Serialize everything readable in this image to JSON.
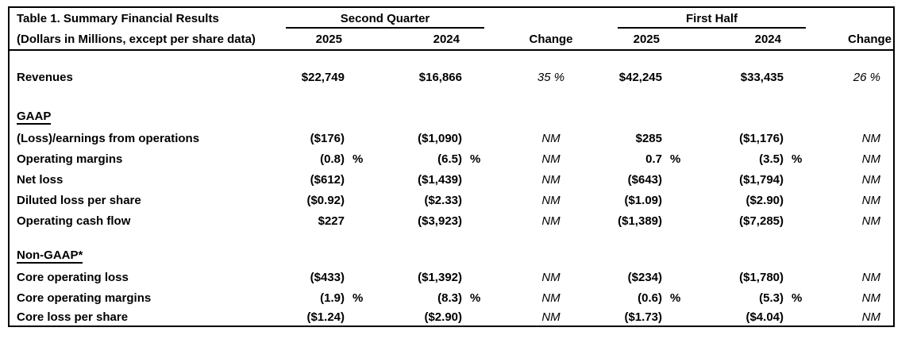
{
  "colors": {
    "background": "#ffffff",
    "text": "#000000",
    "border": "#000000"
  },
  "table": {
    "title": "Table 1. Summary Financial Results",
    "subtitle": "(Dollars in Millions, except per share data)",
    "groups": {
      "second_quarter": "Second Quarter",
      "first_half": "First Half"
    },
    "headers": {
      "q2_2025": "2025",
      "q2_2024": "2024",
      "q2_change": "Change",
      "fh_2025": "2025",
      "fh_2024": "2024",
      "fh_change": "Change"
    },
    "rows": [
      {
        "label": "Revenues",
        "q2_2025": "$22,749",
        "q2_2024": "$16,866",
        "q2_change": "35 %",
        "fh_2025": "$42,245",
        "fh_2024": "$33,435",
        "fh_change": "26 %"
      },
      {
        "label": "GAAP"
      },
      {
        "label": "(Loss)/earnings from operations",
        "q2_2025": "($176)",
        "q2_2024": "($1,090)",
        "q2_change": "NM",
        "fh_2025": "$285",
        "fh_2024": "($1,176)",
        "fh_change": "NM"
      },
      {
        "label": "Operating margins",
        "q2_2025": "(0.8)",
        "q2_2025_pct": "%",
        "q2_2024": "(6.5)",
        "q2_2024_pct": "%",
        "q2_change": "NM",
        "fh_2025": "0.7",
        "fh_2025_pct": "%",
        "fh_2024": "(3.5)",
        "fh_2024_pct": "%",
        "fh_change": "NM"
      },
      {
        "label": "Net loss",
        "q2_2025": "($612)",
        "q2_2024": "($1,439)",
        "q2_change": "NM",
        "fh_2025": "($643)",
        "fh_2024": "($1,794)",
        "fh_change": "NM"
      },
      {
        "label": "Diluted loss per share",
        "q2_2025": "($0.92)",
        "q2_2024": "($2.33)",
        "q2_change": "NM",
        "fh_2025": "($1.09)",
        "fh_2024": "($2.90)",
        "fh_change": "NM"
      },
      {
        "label": "Operating cash flow",
        "q2_2025": "$227",
        "q2_2024": "($3,923)",
        "q2_change": "NM",
        "fh_2025": "($1,389)",
        "fh_2024": "($7,285)",
        "fh_change": "NM"
      },
      {
        "label": "Non-GAAP*"
      },
      {
        "label": "Core operating loss",
        "q2_2025": "($433)",
        "q2_2024": "($1,392)",
        "q2_change": "NM",
        "fh_2025": "($234)",
        "fh_2024": "($1,780)",
        "fh_change": "NM"
      },
      {
        "label": "Core operating margins",
        "q2_2025": "(1.9)",
        "q2_2025_pct": "%",
        "q2_2024": "(8.3)",
        "q2_2024_pct": "%",
        "q2_change": "NM",
        "fh_2025": "(0.6)",
        "fh_2025_pct": "%",
        "fh_2024": "(5.3)",
        "fh_2024_pct": "%",
        "fh_change": "NM"
      },
      {
        "label": "Core loss per share",
        "q2_2025": "($1.24)",
        "q2_2024": "($2.90)",
        "q2_change": "NM",
        "fh_2025": "($1.73)",
        "fh_2024": "($4.04)",
        "fh_change": "NM"
      }
    ]
  }
}
